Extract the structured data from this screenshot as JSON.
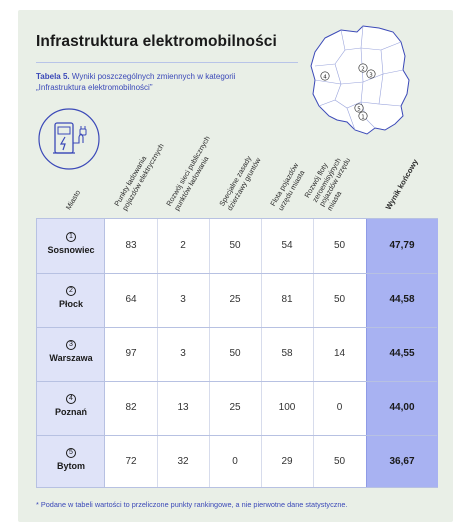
{
  "title": "Infrastruktura elektromobilności",
  "caption": {
    "label": "Tabela 5.",
    "text": " Wyniki poszczególnych zmiennych w kategorii „Infrastruktura elektromobilności”"
  },
  "map_markers": [
    "①",
    "②",
    "③",
    "④",
    "⑤"
  ],
  "columns": [
    "Miasto",
    "Punkty ładowania\npojazdów elektrycznych",
    "Rozwój sieci publicznych\npunktów ładowania",
    "Specjalne zasady\ndzierżawy gruntów",
    "Flota pojazdów\nurzędu miasta",
    "Rozwój floty\nzeroemisyjnych\npojazdów urzędu\nmiasta",
    "Wynik końcowy"
  ],
  "rows": [
    {
      "rank": "1",
      "city": "Sosnowiec",
      "values": [
        "83",
        "2",
        "50",
        "54",
        "50"
      ],
      "result": "47,79"
    },
    {
      "rank": "2",
      "city": "Płock",
      "values": [
        "64",
        "3",
        "25",
        "81",
        "50"
      ],
      "result": "44,58"
    },
    {
      "rank": "3",
      "city": "Warszawa",
      "values": [
        "97",
        "3",
        "50",
        "58",
        "14"
      ],
      "result": "44,55"
    },
    {
      "rank": "4",
      "city": "Poznań",
      "values": [
        "82",
        "13",
        "25",
        "100",
        "0"
      ],
      "result": "44,00"
    },
    {
      "rank": "5",
      "city": "Bytom",
      "values": [
        "72",
        "32",
        "0",
        "29",
        "50"
      ],
      "result": "36,67"
    }
  ],
  "footnote": "* Podane w tabeli wartości to przeliczone punkty rankingowe, a nie pierwotne dane statystyczne.",
  "colors": {
    "background": "#e9efe7",
    "accent": "#3b49b8",
    "city_column": "#dfe3f8",
    "result_column": "#a8b2f2"
  },
  "icons": [
    "poland-map-icon",
    "ev-charger-icon"
  ]
}
